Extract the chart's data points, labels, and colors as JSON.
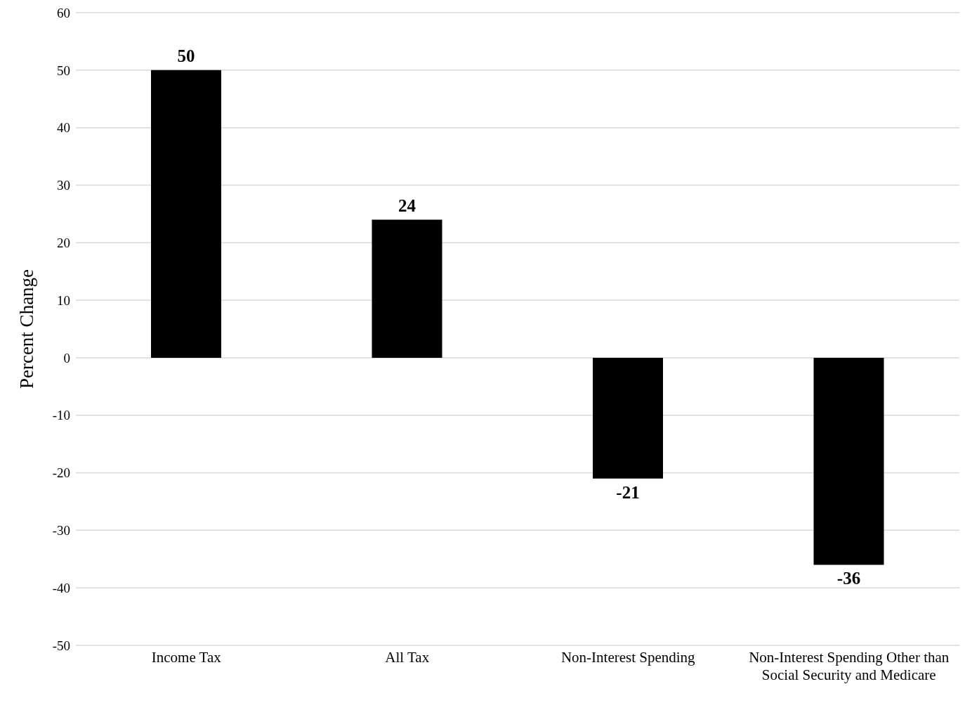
{
  "chart_data": {
    "type": "bar",
    "ylabel": "Percent Change",
    "categories": [
      "Income Tax",
      "All Tax",
      "Non-Interest Spending",
      "Non-Interest Spending Other than Social Security and Medicare"
    ],
    "values": [
      50,
      24,
      -21,
      -36
    ],
    "color": "#000000",
    "ylim": [
      -50,
      60
    ],
    "yticks": [
      -50,
      -40,
      -30,
      -20,
      -10,
      0,
      10,
      20,
      30,
      40,
      50,
      60
    ],
    "grid": "y",
    "data_labels": true
  }
}
